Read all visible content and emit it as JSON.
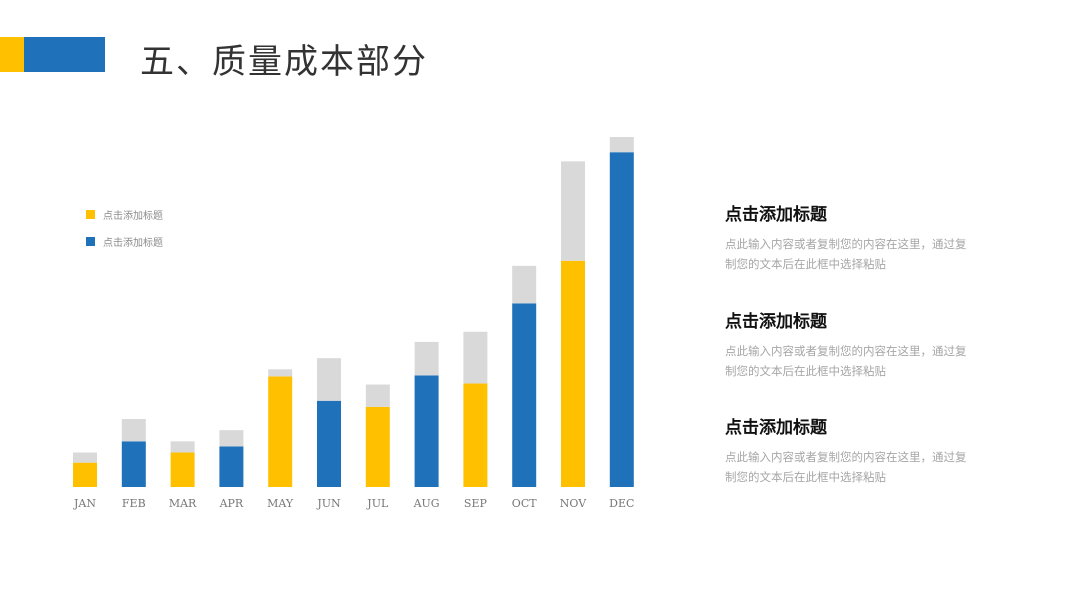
{
  "header": {
    "title": "五、质量成本部分"
  },
  "legend": [
    {
      "label": "点击添加标题",
      "color": "#FFC000"
    },
    {
      "label": "点击添加标题",
      "color": "#1F72BA"
    }
  ],
  "chart_data": {
    "type": "bar",
    "stacked": true,
    "categories": [
      "JAN",
      "FEB",
      "MAR",
      "APR",
      "MAY",
      "JUN",
      "JUL",
      "AUG",
      "SEP",
      "OCT",
      "NOV",
      "DEC"
    ],
    "primary_colors": [
      "#FFC000",
      "#1F72BA",
      "#FFC000",
      "#1F72BA",
      "#FFC000",
      "#1F72BA",
      "#FFC000",
      "#1F72BA",
      "#FFC000",
      "#1F72BA",
      "#FFC000",
      "#1F72BA"
    ],
    "cap_color": "#D9D9D9",
    "series": [
      {
        "values": [
          24,
          45,
          34,
          40,
          109,
          85,
          79,
          110,
          102,
          181,
          223,
          330
        ]
      },
      {
        "values": [
          10,
          22,
          11,
          16,
          7,
          42,
          22,
          33,
          51,
          37,
          98,
          15
        ]
      }
    ],
    "ylim": [
      0,
      345
    ],
    "grid": false
  },
  "side_blocks": [
    {
      "heading": "点击添加标题",
      "body": "点此输入内容或者复制您的内容在这里，通过复制您的文本后在此框中选择粘贴"
    },
    {
      "heading": "点击添加标题",
      "body": "点此输入内容或者复制您的内容在这里，通过复制您的文本后在此框中选择粘贴"
    },
    {
      "heading": "点击添加标题",
      "body": "点此输入内容或者复制您的内容在这里，通过复制您的文本后在此框中选择粘贴"
    }
  ]
}
